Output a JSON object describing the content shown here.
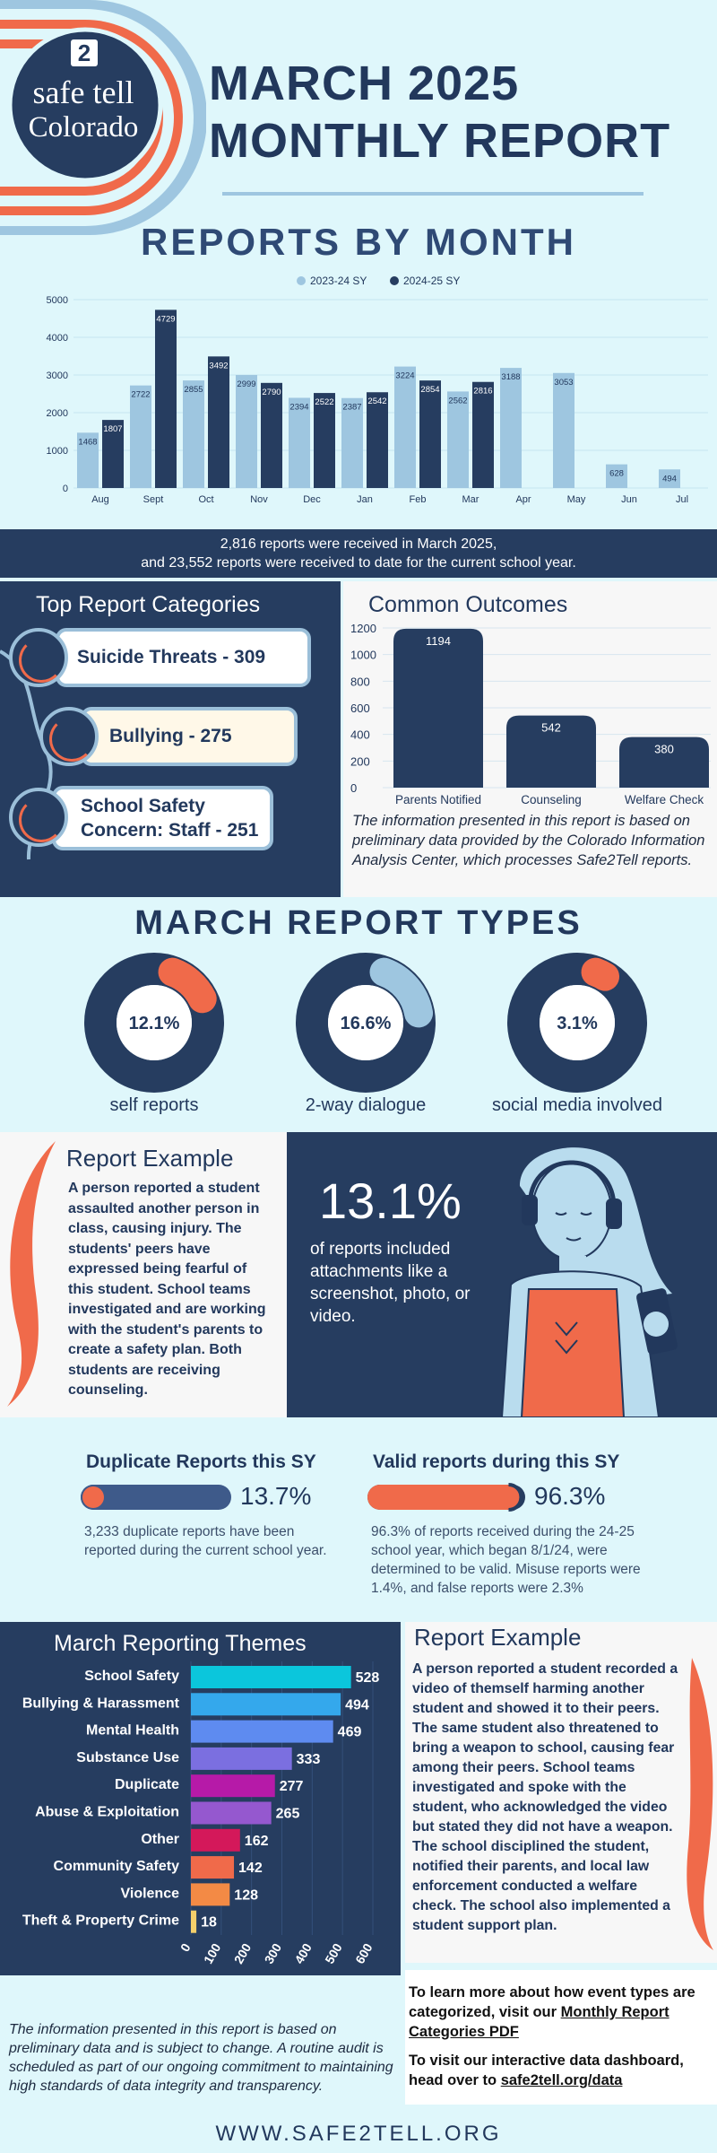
{
  "header": {
    "logo_line1": "safe tell",
    "logo_badge": "2",
    "logo_line2": "Colorado",
    "title_line1": "MARCH 2025",
    "title_line2": "MONTHLY REPORT"
  },
  "colors": {
    "navy": "#263d60",
    "light_blue": "#9ec6e0",
    "accent": "#f06a4a",
    "background": "#dff7fb"
  },
  "reports_by_month": {
    "title": "REPORTS BY MONTH",
    "chart_data": {
      "type": "bar",
      "categories": [
        "Aug",
        "Sept",
        "Oct",
        "Nov",
        "Dec",
        "Jan",
        "Feb",
        "Mar",
        "Apr",
        "May",
        "Jun",
        "Jul"
      ],
      "series": [
        {
          "name": "2023-24 SY",
          "color": "#9ec6e0",
          "values": [
            1468,
            2722,
            2855,
            2999,
            2394,
            2387,
            3224,
            2562,
            3188,
            3053,
            628,
            494
          ]
        },
        {
          "name": "2024-25 SY",
          "color": "#263d60",
          "values": [
            1807,
            4729,
            3492,
            2790,
            2522,
            2542,
            2854,
            2816,
            null,
            null,
            null,
            null
          ]
        }
      ],
      "yticks": [
        0,
        1000,
        2000,
        3000,
        4000,
        5000
      ],
      "ylim": [
        0,
        5000
      ],
      "legend_position": "top-center",
      "grid": true
    }
  },
  "summary": {
    "line1": "2,816 reports were received in March 2025,",
    "line2": "and 23,552 reports were received to date for the current school year."
  },
  "top_categories": {
    "title": "Top Report Categories",
    "items": [
      {
        "label": "Suicide Threats - 309"
      },
      {
        "label": "Bullying - 275"
      },
      {
        "label": "School Safety",
        "label2": "Concern: Staff - 251"
      }
    ]
  },
  "outcomes": {
    "title": "Common Outcomes",
    "chart_data": {
      "type": "bar",
      "categories": [
        "Parents Notified",
        "Counseling",
        "Welfare Check"
      ],
      "values": [
        1194,
        542,
        380
      ],
      "yticks": [
        0,
        200,
        400,
        600,
        800,
        1000,
        1200
      ],
      "ylim": [
        0,
        1200
      ]
    },
    "note": "The information presented in this report is based on preliminary data provided by the Colorado Information Analysis Center, which processes Safe2Tell reports."
  },
  "report_types": {
    "title": "MARCH REPORT TYPES",
    "items": [
      {
        "value": "12.1%",
        "fraction": 0.121,
        "label": "self reports",
        "accent": "#f06a4a"
      },
      {
        "value": "16.6%",
        "fraction": 0.166,
        "label": "2-way dialogue",
        "accent": "#9ec6e0"
      },
      {
        "value": "3.1%",
        "fraction": 0.031,
        "label": "social media involved",
        "accent": "#f06a4a"
      }
    ]
  },
  "example1": {
    "title": "Report Example",
    "body": "A person reported a student assaulted another person in class, causing injury. The students' peers have expressed being fearful of this student. School teams investigated and are working with the student's parents to create a safety plan. Both students are receiving counseling."
  },
  "attachments": {
    "value": "13.1%",
    "text": "of reports included attachments like a screenshot, photo, or video."
  },
  "duplicate": {
    "title": "Duplicate Reports this SY",
    "value": "13.7%",
    "fraction": 0.137,
    "body": "3,233 duplicate reports have been reported during the current school year."
  },
  "valid": {
    "title": "Valid reports during this SY",
    "value": "96.3%",
    "fraction": 0.963,
    "body": "96.3% of reports received during the 24-25 school year, which began 8/1/24, were determined to be valid. Misuse reports were 1.4%, and false reports were 2.3%"
  },
  "themes": {
    "title": "March Reporting Themes",
    "chart_data": {
      "type": "bar",
      "orientation": "horizontal",
      "categories": [
        "School Safety",
        "Bullying & Harassment",
        "Mental Health",
        "Substance Use",
        "Duplicate",
        "Abuse & Exploitation",
        "Other",
        "Community Safety",
        "Violence",
        "Theft & Property Crime"
      ],
      "values": [
        528,
        494,
        469,
        333,
        277,
        265,
        162,
        142,
        128,
        18
      ],
      "colors": [
        "#0bc6dc",
        "#34a8ec",
        "#5e8bf0",
        "#7b6fe0",
        "#b61aa8",
        "#9558cf",
        "#d4185a",
        "#f06a4a",
        "#f38a45",
        "#f5d06b"
      ],
      "xticks": [
        0,
        100,
        200,
        300,
        400,
        500,
        600
      ],
      "xlim": [
        0,
        600
      ]
    }
  },
  "example2": {
    "title": "Report Example",
    "body": "A person reported a student recorded a video of themself harming another student and showed it to their peers. The same student also threatened to bring a weapon to school, causing fear among their peers. School teams investigated and spoke with the student, who acknowledged the video but stated they did not have a weapon. The school disciplined the student, notified their parents, and local law enforcement conducted a welfare check. The school also implemented a student support plan."
  },
  "learn_more": {
    "text1": "To learn more about how event types are categorized, visit our ",
    "link1": "Monthly Report Categories PDF",
    "text2": "To visit our interactive data dashboard, head over to ",
    "link2": "safe2tell.org/data"
  },
  "disclaimer": "The information presented in this report is based on preliminary data and is subject to change. A routine audit is scheduled as part of our ongoing commitment to maintaining high standards of data integrity and transparency.",
  "footer": {
    "url": "WWW.SAFE2TELL.ORG"
  }
}
